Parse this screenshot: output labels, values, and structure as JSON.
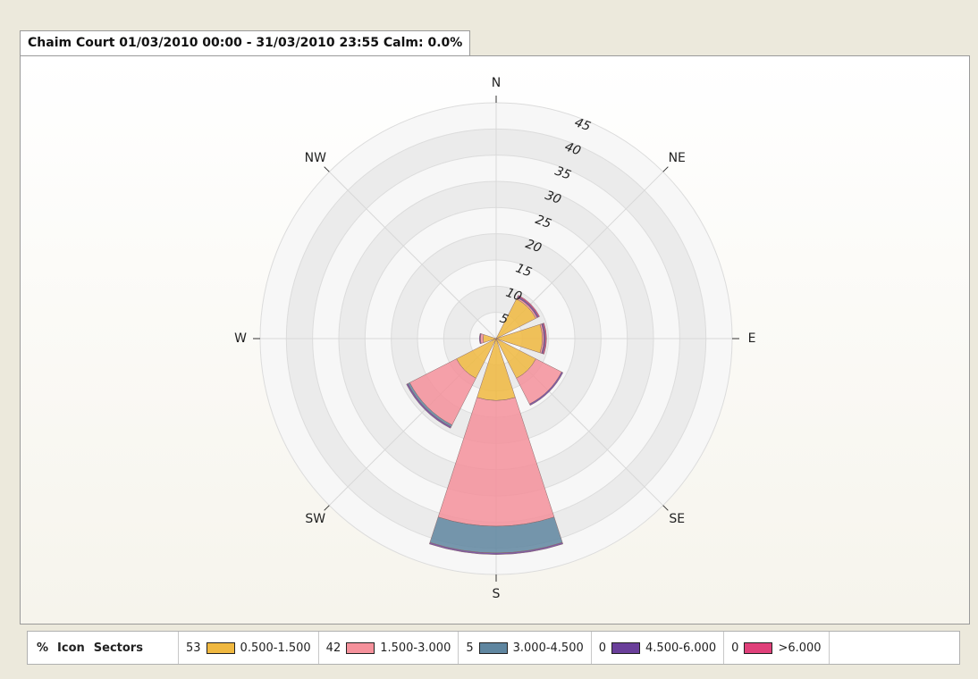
{
  "chart_data": {
    "type": "windrose",
    "title": "Chaim Court 01/03/2010 00:00 - 31/03/2010 23:55 Calm: 0.0%",
    "categories": [
      "N",
      "NE",
      "E",
      "SE",
      "S",
      "SW",
      "W",
      "NW"
    ],
    "ylim": [
      0,
      45
    ],
    "yticks": [
      5,
      10,
      15,
      20,
      25,
      30,
      35,
      40,
      45
    ],
    "legend_headers": [
      "%",
      "Icon",
      "Sectors"
    ],
    "series": [
      {
        "name": "0.500-1.500",
        "color": "#f0b840",
        "percent": 53,
        "values": [
          0,
          8.5,
          8.8,
          8.5,
          11.8,
          8.5,
          2.5,
          0
        ]
      },
      {
        "name": "1.500-3.000",
        "color": "#f5919b",
        "percent": 42,
        "values": [
          0,
          0.3,
          0.3,
          5.5,
          24,
          10,
          0.5,
          0
        ]
      },
      {
        "name": "3.000-4.500",
        "color": "#5f86a0",
        "percent": 5,
        "values": [
          0,
          0,
          0,
          0,
          5.1,
          0.4,
          0,
          0
        ]
      },
      {
        "name": "4.500-6.000",
        "color": "#6a3f9a",
        "percent": 0,
        "values": [
          0,
          0.3,
          0.3,
          0.3,
          0.3,
          0.3,
          0.2,
          0
        ]
      },
      {
        "name": ">6.000",
        "color": "#e0407a",
        "percent": 0,
        "values": [
          0,
          0.2,
          0.2,
          0,
          0,
          0,
          0,
          0
        ]
      }
    ]
  }
}
